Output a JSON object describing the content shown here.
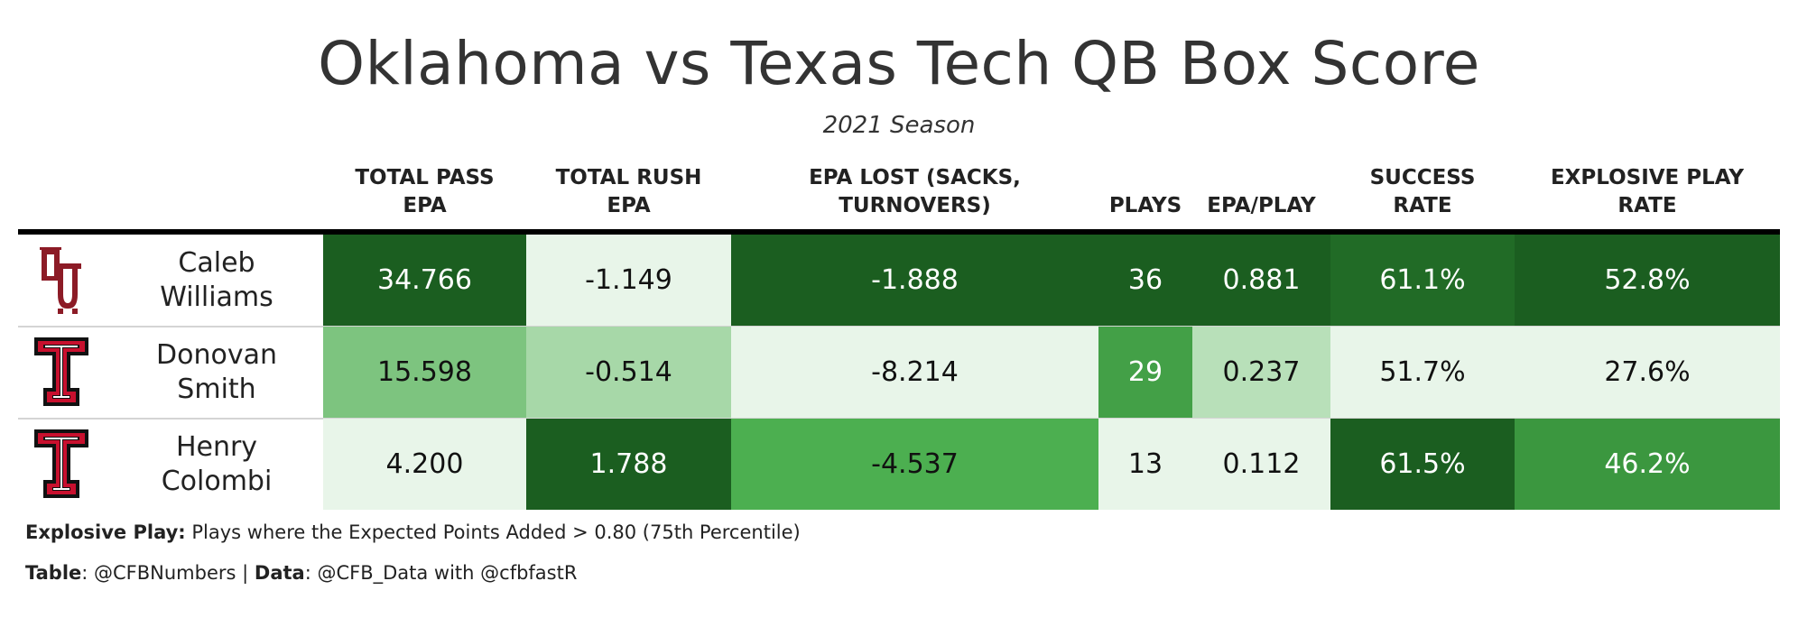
{
  "title": "Oklahoma vs Texas Tech QB Box Score",
  "subtitle": "2021 Season",
  "chart_data": {
    "type": "table",
    "columns": [
      {
        "key": "total_pass_epa",
        "label_lines": [
          "TOTAL PASS",
          "EPA"
        ]
      },
      {
        "key": "total_rush_epa",
        "label_lines": [
          "TOTAL RUSH",
          "EPA"
        ]
      },
      {
        "key": "epa_lost",
        "label_lines": [
          "EPA LOST (SACKS,",
          "TURNOVERS)"
        ]
      },
      {
        "key": "plays",
        "label_lines": [
          "PLAYS"
        ]
      },
      {
        "key": "epa_play",
        "label_lines": [
          "EPA/PLAY"
        ]
      },
      {
        "key": "success_rate",
        "label_lines": [
          "SUCCESS",
          "RATE"
        ]
      },
      {
        "key": "explosive_rate",
        "label_lines": [
          "EXPLOSIVE PLAY",
          "RATE"
        ]
      }
    ],
    "rows": [
      {
        "team_logo": "oklahoma-ou-logo",
        "name_lines": [
          "Caleb",
          "Williams"
        ],
        "values": [
          "34.766",
          "-1.149",
          "-1.888",
          "36",
          "0.881",
          "61.1%",
          "52.8%"
        ],
        "colors": [
          "#1b5e20",
          "#e8f5e9",
          "#1b5e20",
          "#1b5e20",
          "#1b5e20",
          "#216b26",
          "#1b5e20"
        ],
        "text_colors": [
          "#ffffff",
          "#111111",
          "#ffffff",
          "#ffffff",
          "#ffffff",
          "#ffffff",
          "#ffffff"
        ]
      },
      {
        "team_logo": "texas-tech-double-t-logo",
        "name_lines": [
          "Donovan",
          "Smith"
        ],
        "values": [
          "15.598",
          "-0.514",
          "-8.214",
          "29",
          "0.237",
          "51.7%",
          "27.6%"
        ],
        "colors": [
          "#7dc47f",
          "#a7d8a8",
          "#e8f5e9",
          "#43a047",
          "#b8e0b9",
          "#e8f5e9",
          "#e8f5e9"
        ],
        "text_colors": [
          "#111111",
          "#111111",
          "#111111",
          "#ffffff",
          "#111111",
          "#111111",
          "#111111"
        ]
      },
      {
        "team_logo": "texas-tech-double-t-logo",
        "name_lines": [
          "Henry",
          "Colombi"
        ],
        "values": [
          "4.200",
          "1.788",
          "-4.537",
          "13",
          "0.112",
          "61.5%",
          "46.2%"
        ],
        "colors": [
          "#e8f5e9",
          "#1b5e20",
          "#4caf50",
          "#e8f5e9",
          "#e8f5e9",
          "#1b5e20",
          "#3b973f"
        ],
        "text_colors": [
          "#111111",
          "#ffffff",
          "#111111",
          "#111111",
          "#111111",
          "#ffffff",
          "#ffffff"
        ]
      }
    ]
  },
  "footnotes": {
    "explosive_label": "Explosive Play:",
    "explosive_text": " Plays where the Expected Points Added > 0.80 (75th Percentile)",
    "table_label": "Table",
    "table_value": ": @CFBNumbers | ",
    "data_label": "Data",
    "data_value": ": @CFB_Data with @cfbfastR"
  }
}
